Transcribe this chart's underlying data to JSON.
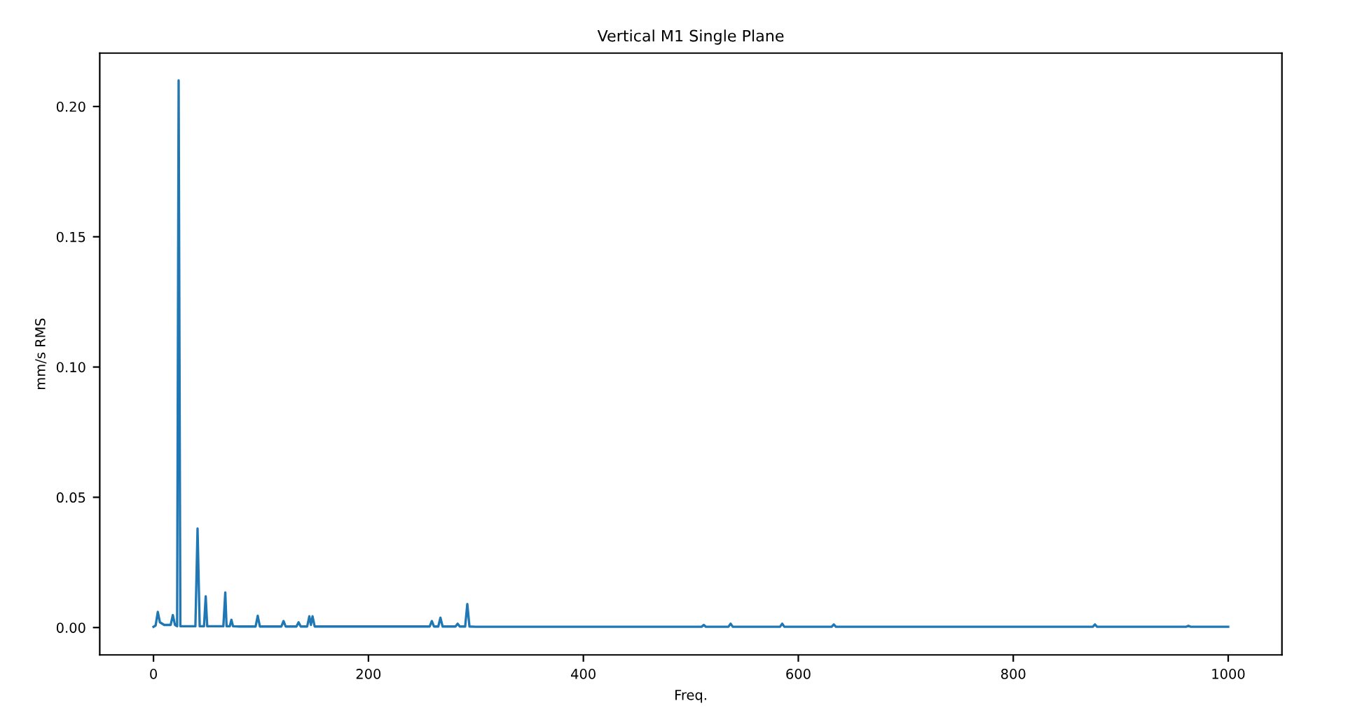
{
  "chart_data": {
    "type": "line",
    "title": "Vertical M1 Single Plane",
    "xlabel": "Freq.",
    "ylabel": "mm/s RMS",
    "x": [
      0,
      2,
      4,
      6,
      10,
      16,
      18,
      20,
      22,
      23.4,
      25,
      30,
      39,
      41,
      43,
      47,
      48.6,
      50,
      55,
      65,
      66.8,
      68,
      71,
      72.5,
      74,
      80,
      95,
      97,
      99,
      110,
      119,
      121,
      123,
      133,
      135,
      137,
      143,
      145,
      146.5,
      148,
      150,
      160,
      180,
      200,
      220,
      240,
      257,
      259,
      261,
      265,
      267,
      269,
      281,
      283,
      285,
      290,
      292,
      294,
      300,
      350,
      400,
      450,
      500,
      510,
      512,
      514,
      535,
      537,
      539,
      583,
      585,
      587,
      631,
      633,
      635,
      700,
      800,
      874,
      876,
      878,
      900,
      961,
      963,
      965,
      1000
    ],
    "series": [
      {
        "color": "#1f77b4",
        "values": [
          0.0003,
          0.0008,
          0.006,
          0.002,
          0.001,
          0.001,
          0.0048,
          0.001,
          0.0005,
          0.21,
          0.0005,
          0.0005,
          0.0005,
          0.038,
          0.0005,
          0.0005,
          0.012,
          0.0005,
          0.0005,
          0.0005,
          0.0135,
          0.0005,
          0.0005,
          0.003,
          0.0005,
          0.0004,
          0.0004,
          0.0045,
          0.0004,
          0.0004,
          0.0004,
          0.0025,
          0.0004,
          0.0004,
          0.002,
          0.0004,
          0.0004,
          0.0043,
          0.001,
          0.0043,
          0.0004,
          0.0004,
          0.0004,
          0.0004,
          0.0004,
          0.0004,
          0.0004,
          0.0025,
          0.0004,
          0.0004,
          0.0038,
          0.0004,
          0.0004,
          0.0015,
          0.0004,
          0.0004,
          0.009,
          0.0004,
          0.0003,
          0.0003,
          0.0003,
          0.0003,
          0.0003,
          0.0003,
          0.001,
          0.0003,
          0.0003,
          0.0015,
          0.0003,
          0.0003,
          0.0015,
          0.0003,
          0.0003,
          0.0012,
          0.0003,
          0.0003,
          0.0003,
          0.0003,
          0.0012,
          0.0003,
          0.0003,
          0.0003,
          0.0007,
          0.0003,
          0.0003
        ]
      }
    ],
    "xlim": [
      -50,
      1050
    ],
    "xticks": [
      0,
      200,
      400,
      600,
      800,
      1000
    ],
    "ylim": [
      -0.0105,
      0.2205
    ],
    "yticks": [
      {
        "value": 0,
        "label": "0.00"
      },
      {
        "value": 0.05,
        "label": "0.05"
      },
      {
        "value": 0.1,
        "label": "0.10"
      },
      {
        "value": 0.15,
        "label": "0.15"
      },
      {
        "value": 0.2,
        "label": "0.20"
      }
    ],
    "grid": false,
    "legend": false
  }
}
